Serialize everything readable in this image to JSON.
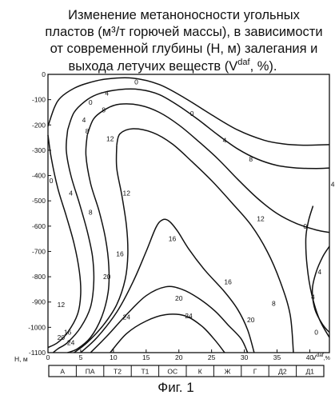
{
  "chart_data": {
    "type": "line",
    "title_lines": [
      "Изменение метаноносности угольных",
      "пластов (м³/т горючей массы), в зависимости",
      "от современной глубины (Н, м) залегания и",
      "выхода летучих веществ (V",
      "daf",
      ", %)."
    ],
    "ylabel": "Н, м",
    "xlabel": "V",
    "xlabel_sup": "daf",
    "xlabel_unit": ",%",
    "xlim": [
      0,
      43
    ],
    "ylim": [
      -1100,
      0
    ],
    "x_ticks": [
      "0",
      "5",
      "10",
      "15",
      "20",
      "25",
      "30",
      "35",
      "40"
    ],
    "y_ticks": [
      "0",
      "-100",
      "-200",
      "-300",
      "-400",
      "-500",
      "-600",
      "-700",
      "-800",
      "-900",
      "-1000",
      "-1100"
    ],
    "grid": false,
    "coal_grades": [
      "А",
      "ПА",
      "Т2",
      "Т1",
      "ОС",
      "К",
      "Ж",
      "Г",
      "Д2",
      "Д1"
    ],
    "caption": "Фиг. 1",
    "series": [
      {
        "name": "0",
        "labels": [
          [
            13.5,
            -30
          ],
          [
            22,
            -155
          ],
          [
            6.5,
            -110
          ],
          [
            0.5,
            -420
          ],
          [
            41,
            -1020
          ],
          [
            39.3,
            -600
          ]
        ]
      },
      {
        "name": "4",
        "labels": [
          [
            9,
            -75
          ],
          [
            27,
            -260
          ],
          [
            5.5,
            -180
          ],
          [
            3.5,
            -470
          ],
          [
            43.5,
            -435
          ],
          [
            41.5,
            -780
          ],
          [
            40.5,
            -880
          ]
        ]
      },
      {
        "name": "8",
        "labels": [
          [
            8.5,
            -140
          ],
          [
            31,
            -335
          ],
          [
            6,
            -225
          ],
          [
            6.5,
            -545
          ],
          [
            34.5,
            -905
          ]
        ]
      },
      {
        "name": "12",
        "labels": [
          [
            9.5,
            -255
          ],
          [
            12,
            -470
          ],
          [
            32.5,
            -570
          ],
          [
            2,
            -910
          ]
        ]
      },
      {
        "name": "16",
        "labels": [
          [
            11,
            -710
          ],
          [
            19,
            -650
          ],
          [
            27.5,
            -820
          ],
          [
            3,
            -1020
          ]
        ]
      },
      {
        "name": "20",
        "labels": [
          [
            9,
            -800
          ],
          [
            20,
            -885
          ],
          [
            31,
            -970
          ],
          [
            2,
            -1040
          ]
        ]
      },
      {
        "name": "24",
        "labels": [
          [
            12,
            -960
          ],
          [
            21.5,
            -955
          ],
          [
            3.5,
            -1060
          ]
        ]
      }
    ],
    "contours": [
      {
        "level": "0",
        "x": [
          0,
          1,
          2,
          4,
          6,
          9,
          13,
          17,
          21,
          25,
          29,
          33,
          36,
          39,
          43
        ],
        "y": [
          -205,
          -130,
          -90,
          -55,
          -35,
          -18,
          -15,
          -40,
          -95,
          -160,
          -220,
          -260,
          -275,
          -280,
          -278
        ]
      },
      {
        "level": "0",
        "x": [
          0,
          0.5,
          1.5,
          2.8,
          4,
          4.8,
          5,
          4.5,
          3,
          1.5,
          0
        ],
        "y": [
          -240,
          -330,
          -450,
          -560,
          -670,
          -780,
          -870,
          -950,
          -1020,
          -1060,
          -1080
        ]
      },
      {
        "level": "0",
        "x": [
          40.5,
          39.8,
          39.4,
          39.6,
          40.3,
          41.5,
          43
        ],
        "y": [
          -520,
          -580,
          -650,
          -760,
          -870,
          -970,
          -1040
        ]
      },
      {
        "level": "4",
        "x": [
          3,
          4,
          6,
          8,
          11,
          14,
          17,
          20,
          23,
          26,
          29,
          32,
          35,
          38,
          41,
          43
        ],
        "y": [
          -220,
          -150,
          -100,
          -75,
          -60,
          -60,
          -80,
          -125,
          -180,
          -240,
          -295,
          -335,
          -360,
          -370,
          -372,
          -370
        ]
      },
      {
        "level": "4",
        "x": [
          3,
          2.8,
          3.5,
          4.8,
          6,
          6.8,
          7,
          6.5,
          5,
          3,
          1.5,
          0.8
        ],
        "y": [
          -220,
          -300,
          -400,
          -510,
          -620,
          -720,
          -820,
          -920,
          -1000,
          -1060,
          -1085,
          -1100
        ]
      },
      {
        "level": "4",
        "x": [
          43,
          42,
          41,
          40.4,
          40.8,
          42,
          43
        ],
        "y": [
          -680,
          -720,
          -780,
          -850,
          -930,
          -990,
          -1020
        ]
      },
      {
        "level": "8",
        "x": [
          6,
          7,
          9,
          11,
          14,
          17,
          20,
          23,
          26,
          29,
          32,
          35,
          38,
          41,
          43
        ],
        "y": [
          -240,
          -175,
          -135,
          -118,
          -122,
          -150,
          -200,
          -265,
          -335,
          -415,
          -490,
          -550,
          -590,
          -615,
          -625
        ]
      },
      {
        "level": "8",
        "x": [
          6,
          5.8,
          6.5,
          7.8,
          8.8,
          9.3,
          9.2,
          8.2,
          6.5,
          4.5,
          3
        ],
        "y": [
          -240,
          -320,
          -430,
          -540,
          -650,
          -760,
          -860,
          -960,
          -1040,
          -1085,
          -1100
        ]
      },
      {
        "level": "12",
        "x": [
          10.5,
          11,
          13,
          16,
          19,
          22,
          25,
          28,
          31,
          33.5,
          35.5,
          37,
          37.5
        ],
        "y": [
          -280,
          -235,
          -215,
          -230,
          -275,
          -345,
          -420,
          -505,
          -595,
          -700,
          -820,
          -950,
          -1100
        ]
      },
      {
        "level": "12",
        "x": [
          10.5,
          10.5,
          11.3,
          12,
          12.2,
          11.8,
          10.5,
          8.5,
          6,
          4
        ],
        "y": [
          -280,
          -370,
          -480,
          -600,
          -710,
          -810,
          -910,
          -990,
          -1060,
          -1100
        ]
      },
      {
        "level": "16",
        "x": [
          5,
          7.5,
          10.5,
          13,
          15,
          16.5,
          17.5,
          18.5,
          19.8,
          21.5,
          24,
          27,
          29,
          30.5,
          31.5
        ],
        "y": [
          -1100,
          -1040,
          -940,
          -820,
          -700,
          -605,
          -575,
          -580,
          -620,
          -690,
          -775,
          -860,
          -930,
          -1010,
          -1100
        ]
      },
      {
        "level": "20",
        "x": [
          6.5,
          9,
          12,
          15,
          18,
          20.5,
          23,
          25.5,
          27.5,
          29.5,
          30.5
        ],
        "y": [
          -1100,
          -1035,
          -950,
          -875,
          -840,
          -850,
          -885,
          -935,
          -990,
          -1045,
          -1100
        ]
      },
      {
        "level": "24",
        "x": [
          9.5,
          12,
          15,
          18,
          21,
          23.5,
          25.5,
          27
        ],
        "y": [
          -1100,
          -1025,
          -975,
          -950,
          -955,
          -995,
          -1050,
          -1100
        ]
      }
    ]
  }
}
